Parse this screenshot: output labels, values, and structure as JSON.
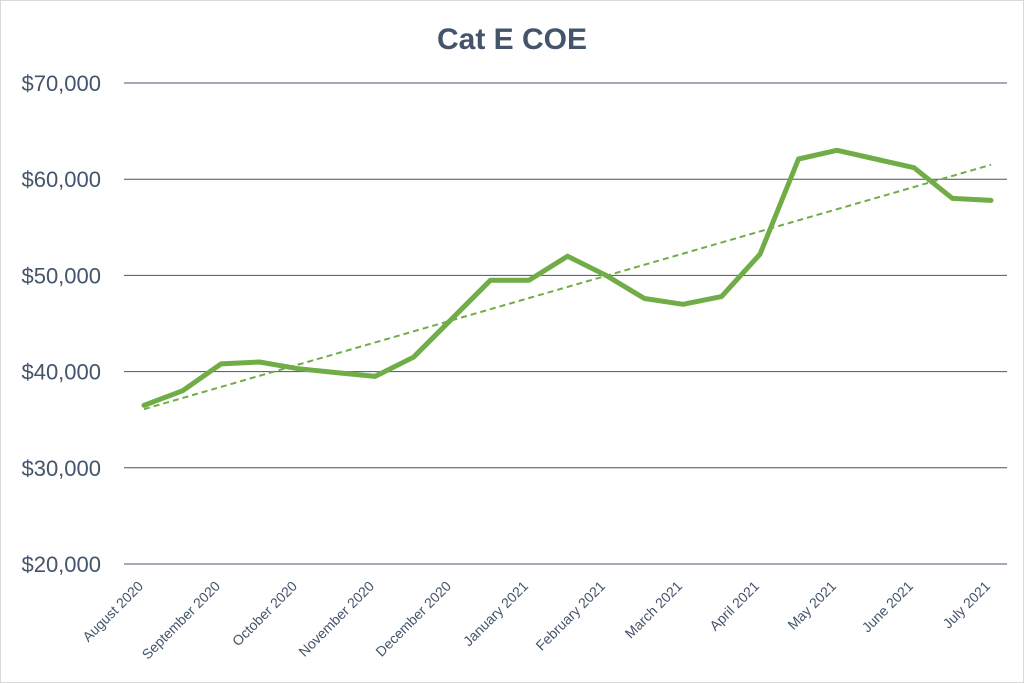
{
  "chart_data": {
    "type": "line",
    "title": "Cat E COE",
    "xlabel": "",
    "ylabel": "",
    "ylim": [
      20000,
      70000
    ],
    "yticks": [
      20000,
      30000,
      40000,
      50000,
      60000,
      70000
    ],
    "ytick_labels": [
      "$20,000",
      "$30,000",
      "$40,000",
      "$50,000",
      "$60,000",
      "$70,000"
    ],
    "x_tick_labels": [
      "August 2020",
      "September 2020",
      "October 2020",
      "November 2020",
      "December 2020",
      "January 2021",
      "February 2021",
      "March 2021",
      "April 2021",
      "May 2021",
      "June 2021",
      "July 2021"
    ],
    "grid": true,
    "legend": "none",
    "series": [
      {
        "color": "#70ad47",
        "style": "solid",
        "values": [
          36500,
          38000,
          40800,
          41000,
          40300,
          39900,
          39500,
          41500,
          45500,
          49500,
          49500,
          52000,
          50000,
          47600,
          47000,
          47800,
          52200,
          62100,
          63000,
          62100,
          61200,
          58000,
          57800
        ]
      },
      {
        "color": "#70ad47",
        "style": "dashed",
        "trendline": true,
        "start": 36100,
        "end": 61500
      }
    ]
  }
}
